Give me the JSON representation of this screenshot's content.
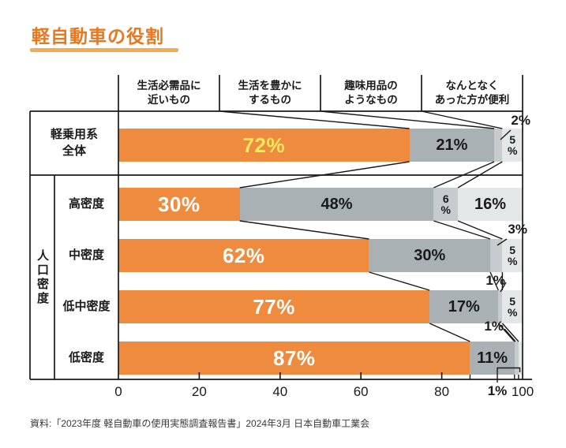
{
  "page": {
    "title": "軽自動車の役割",
    "source": "資料:「2023年度 軽自動車の使用実態調査報告書」2024年3月 日本自動車工業会"
  },
  "theme": {
    "title_color": "#E8781E",
    "title_underline_color": "#F5AB50",
    "line_color": "#1a1a1a",
    "segment_colors": [
      "#EF8B3E",
      "#A9B1B5",
      "#C6CBCE",
      "#E4E7E8"
    ],
    "big_value_colors": [
      "#F8E95F",
      "#ffffff",
      "#ffffff",
      "#ffffff",
      "#ffffff"
    ],
    "value_text_color": "#1a1a1a"
  },
  "chart_data": {
    "type": "bar",
    "variant": "horizontal-stacked-percentage",
    "title": "軽自動車の役割",
    "categories": [
      "生活必需品に\n近いもの",
      "生活を豊かに\nするもの",
      "趣味用品の\nようなもの",
      "なんとなく\nあった方が便利"
    ],
    "group_label": "人口密度",
    "rows": [
      {
        "label": "軽乗用系\n全体",
        "group": "",
        "values": [
          72,
          21,
          2,
          5
        ],
        "value_labels": [
          "72%",
          "21%",
          "2%",
          "5\n%"
        ],
        "label_modes": [
          "inside-big",
          "inside",
          "callout-above",
          "inside-vertical"
        ]
      },
      {
        "label": "高密度",
        "group": "人口密度",
        "values": [
          30,
          48,
          6,
          16
        ],
        "value_labels": [
          "30%",
          "48%",
          "6\n%",
          "16%"
        ],
        "label_modes": [
          "inside-big",
          "inside",
          "inside-vertical",
          "inside"
        ]
      },
      {
        "label": "中密度",
        "group": "人口密度",
        "values": [
          62,
          30,
          3,
          5
        ],
        "value_labels": [
          "62%",
          "30%",
          "3%",
          "5\n%"
        ],
        "label_modes": [
          "inside-big",
          "inside",
          "callout-above",
          "inside-vertical"
        ]
      },
      {
        "label": "低中密度",
        "group": "人口密度",
        "values": [
          77,
          17,
          1,
          5
        ],
        "value_labels": [
          "77%",
          "17%",
          "1%",
          "5\n%"
        ],
        "label_modes": [
          "inside-big",
          "inside",
          "callout-above",
          "inside-vertical"
        ]
      },
      {
        "label": "低密度",
        "group": "人口密度",
        "values": [
          87,
          11,
          1,
          1
        ],
        "value_labels": [
          "87%",
          "11%",
          "1%",
          "1%"
        ],
        "label_modes": [
          "inside-big",
          "inside",
          "callout-above",
          "callout-below"
        ]
      }
    ],
    "xlim": [
      0,
      100
    ],
    "xticks": [
      0,
      20,
      40,
      60,
      80,
      100
    ],
    "legend": "none",
    "grid": false
  }
}
